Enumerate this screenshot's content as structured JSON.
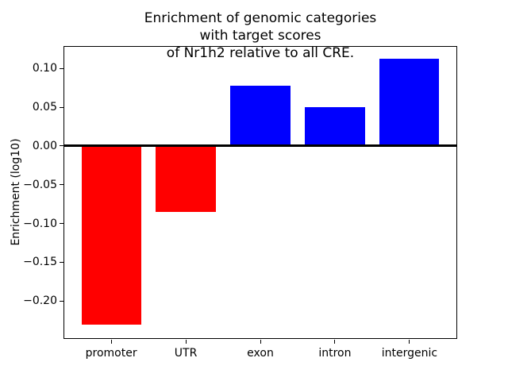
{
  "chart_data": {
    "type": "bar",
    "title": "Enrichment of genomic categories with target scores\nof Nr1h2 relative to all CRE.",
    "xlabel": "",
    "ylabel": "Enrichment (log10)",
    "categories": [
      "promoter",
      "UTR",
      "exon",
      "intron",
      "intergenic"
    ],
    "values": [
      -0.231,
      -0.085,
      0.078,
      0.05,
      0.113
    ],
    "bar_colors": [
      "#ff0000",
      "#ff0000",
      "#0000ff",
      "#0000ff",
      "#0000ff"
    ],
    "ylim": [
      -0.249,
      0.129
    ],
    "yticks": [
      0.1,
      0.05,
      0.0,
      -0.05,
      -0.1,
      -0.15,
      -0.2
    ],
    "ytick_labels": [
      "0.10",
      "0.05",
      "0.00",
      "−0.05",
      "−0.10",
      "−0.15",
      "−0.20"
    ],
    "grid": false,
    "legend": null,
    "zero_line": true,
    "colors": {
      "positive_bar": "#0000ff",
      "negative_bar": "#ff0000",
      "axis": "#000000",
      "background": "#ffffff"
    }
  }
}
